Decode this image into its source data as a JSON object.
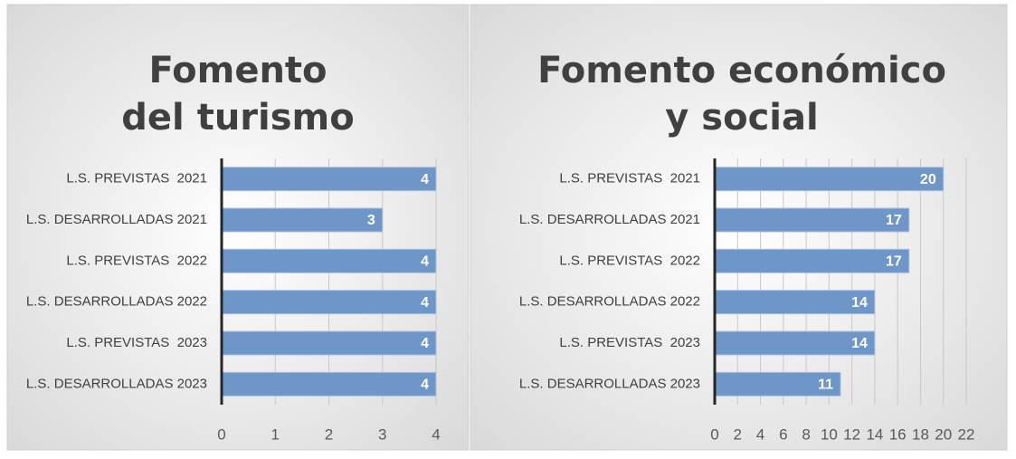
{
  "chart_data": [
    {
      "type": "bar",
      "orientation": "horizontal",
      "title": "Fomento del turismo",
      "categories": [
        "L.S. PREVISTAS  2021",
        "L.S. DESARROLLADAS 2021",
        "L.S. PREVISTAS  2022",
        "L.S. DESARROLLADAS 2022",
        "L.S. PREVISTAS  2023",
        "L.S. DESARROLLADAS 2023"
      ],
      "values": [
        4,
        3,
        4,
        4,
        4,
        4
      ],
      "color": "#6f96c9",
      "xlim": [
        0,
        4
      ],
      "xticks": [
        0,
        1,
        2,
        3,
        4
      ],
      "grid": true
    },
    {
      "type": "bar",
      "orientation": "horizontal",
      "title": "Fomento económico y social",
      "categories": [
        "L.S. PREVISTAS  2021",
        "L.S. DESARROLLADAS 2021",
        "L.S. PREVISTAS  2022",
        "L.S. DESARROLLADAS 2022",
        "L.S. PREVISTAS  2023",
        "L.S. DESARROLLADAS 2023"
      ],
      "values": [
        20,
        17,
        17,
        14,
        14,
        11
      ],
      "color": "#6f96c9",
      "xlim": [
        0,
        22
      ],
      "xticks": [
        0,
        2,
        4,
        6,
        8,
        10,
        12,
        14,
        16,
        18,
        20,
        22
      ],
      "grid": true
    }
  ]
}
